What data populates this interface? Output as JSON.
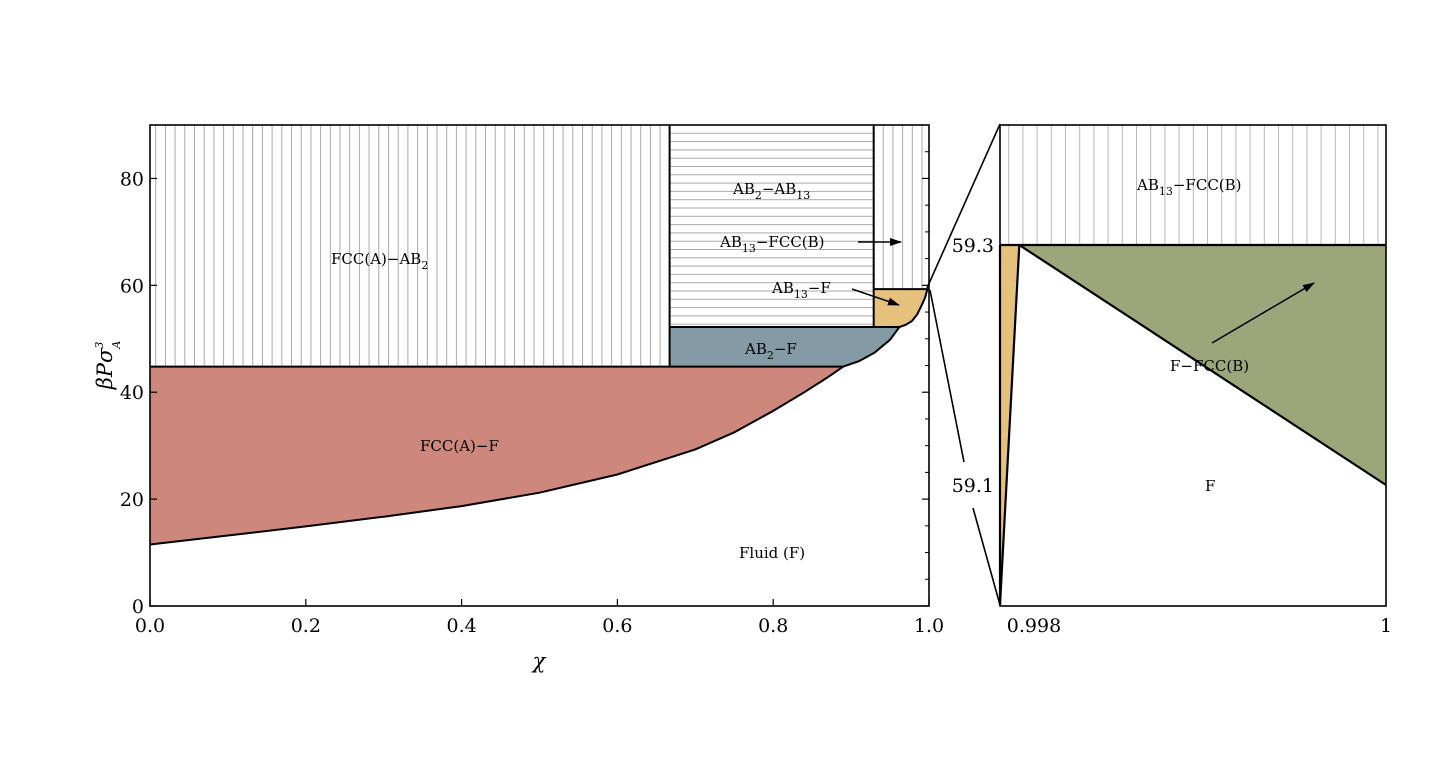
{
  "chart_data": [
    {
      "type": "area",
      "title": "",
      "xlabel": "χ",
      "ylabel": "βPσ",
      "ylabel_sup": "3",
      "ylabel_sub": "A",
      "xlim": [
        0,
        1
      ],
      "ylim": [
        0,
        90
      ],
      "x_ticks": [
        "0.0",
        "0.2",
        "0.4",
        "0.6",
        "0.8",
        "1.0"
      ],
      "y_ticks": [
        "0",
        "20",
        "40",
        "60",
        "80"
      ],
      "grid": false,
      "boundaries": {
        "fcc_a_fluid": {
          "x": [
            0,
            0.1,
            0.2,
            0.3,
            0.4,
            0.5,
            0.6,
            0.7,
            0.75,
            0.8,
            0.84,
            0.87,
            0.89
          ],
          "y": [
            11.5,
            13.2,
            14.9,
            16.7,
            18.7,
            21.2,
            24.6,
            29.3,
            32.5,
            36.5,
            40.0,
            42.8,
            44.8
          ]
        },
        "ab2_fluid": {
          "x": [
            0.89,
            0.91,
            0.93,
            0.95,
            0.962
          ],
          "y": [
            44.8,
            45.8,
            47.4,
            49.8,
            52.2
          ]
        },
        "ab13_fluid": {
          "x": [
            0.962,
            0.97,
            0.978,
            0.985,
            0.99,
            0.995,
            0.998
          ],
          "y": [
            52.2,
            52.6,
            53.3,
            54.6,
            56.1,
            57.7,
            59.3
          ]
        },
        "fcc_a_ab2_y": 44.8,
        "ab2_ab13_y": 52.2,
        "ab13_fccb_y": 59.3,
        "ab2_composition": 0.667,
        "ab13_composition": 0.929
      },
      "regions": [
        {
          "name": "FCC(A)–AB2 coexistence",
          "color": "#ffffff",
          "hatch": "vertical"
        },
        {
          "name": "AB2–AB13 coexistence",
          "color": "#ffffff",
          "hatch": "horizontal"
        },
        {
          "name": "AB13–FCC(B) coexistence",
          "color": "#ffffff",
          "hatch": "vertical"
        },
        {
          "name": "FCC(A)–F coexistence",
          "color": "#cd877c"
        },
        {
          "name": "AB2–F coexistence",
          "color": "#849aa4"
        },
        {
          "name": "AB13–F coexistence",
          "color": "#e6c17c"
        },
        {
          "name": "Fluid (F)",
          "color": "#ffffff"
        }
      ],
      "labels": {
        "fcc_ab2": {
          "main": "FCC(A)−AB",
          "sub": "2"
        },
        "ab2_ab13": {
          "a": "AB",
          "a_sub": "2",
          "b": "−AB",
          "b_sub": "13"
        },
        "ab13_fccb": {
          "a": "AB",
          "a_sub": "13",
          "b": "−FCC(B)"
        },
        "ab13_f": {
          "a": "AB",
          "a_sub": "13",
          "b": "−F"
        },
        "ab2_f": {
          "a": "AB",
          "a_sub": "2",
          "b": "−F"
        },
        "fcc_f": "FCC(A)−F",
        "fluid": "Fluid (F)"
      }
    },
    {
      "type": "area",
      "title": "",
      "xlim": [
        0.998,
        1
      ],
      "ylim": [
        59.0,
        59.3
      ],
      "x_ticks": [
        "0.998",
        "1"
      ],
      "y_ticks": [
        "59.1",
        "59.3"
      ],
      "grid": false,
      "boundaries": {
        "ab13_fluid": {
          "x": [
            0.998,
            0.9981
          ],
          "y": [
            59.0,
            59.3
          ]
        },
        "fccb_fluid": {
          "x": [
            0.9981,
            1.0
          ],
          "y": [
            59.3,
            59.1
          ]
        },
        "ab13_fccb_y": 59.3
      },
      "regions": [
        {
          "name": "AB13–FCC(B)",
          "color": "#ffffff",
          "hatch": "vertical"
        },
        {
          "name": "AB13–F",
          "color": "#e6c17c"
        },
        {
          "name": "F–FCC(B)",
          "color": "#9da67a"
        },
        {
          "name": "F",
          "color": "#ffffff"
        }
      ],
      "labels": {
        "ab13_fccb": {
          "a": "AB",
          "a_sub": "13",
          "b": "−FCC(B)"
        },
        "f_fccb": "F−FCC(B)",
        "f": "F"
      }
    }
  ]
}
